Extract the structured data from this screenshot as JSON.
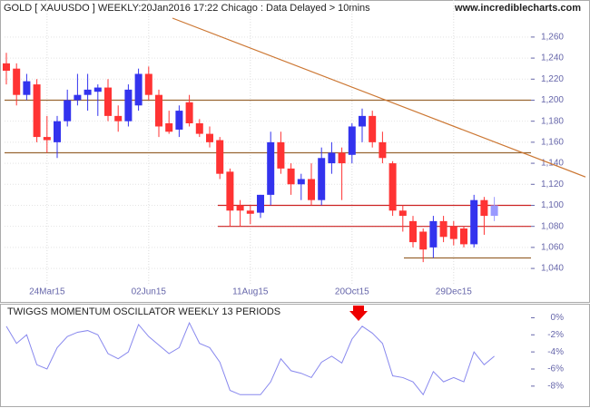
{
  "chart_data": [
    {
      "type": "candlestick",
      "title": "GOLD [ XAUUSDO ] WEEKLY:20Jan2016 17:22 Chicago : Data Delayed > 10mins",
      "source": "www.incrediblecharts.com",
      "categories": [
        null,
        null,
        null,
        null,
        "24Mar15",
        null,
        null,
        null,
        null,
        null,
        null,
        null,
        null,
        null,
        "02Jun15",
        null,
        null,
        null,
        null,
        null,
        null,
        null,
        null,
        null,
        "11Aug15",
        null,
        null,
        null,
        null,
        null,
        null,
        null,
        null,
        null,
        "20Oct15",
        null,
        null,
        null,
        null,
        null,
        null,
        null,
        null,
        null,
        "29Dec15",
        null,
        null,
        null,
        null
      ],
      "open": [
        1235,
        1230,
        1205,
        1215,
        1165,
        1160,
        1180,
        1200,
        1205,
        1208,
        1212,
        1185,
        1180,
        1195,
        1225,
        1205,
        1178,
        1172,
        1198,
        1178,
        1168,
        1162,
        1132,
        1100,
        1095,
        1093,
        1110,
        1160,
        1135,
        1120,
        1125,
        1105,
        1140,
        1150,
        1148,
        1175,
        1185,
        1160,
        1140,
        1095,
        1085,
        1075,
        1060,
        1085,
        1080,
        1078,
        1063,
        1105,
        1090
      ],
      "high": [
        1245,
        1235,
        1225,
        1220,
        1185,
        1185,
        1210,
        1225,
        1225,
        1215,
        1220,
        1195,
        1215,
        1230,
        1232,
        1210,
        1190,
        1195,
        1205,
        1182,
        1175,
        1165,
        1135,
        1105,
        1100,
        1110,
        1170,
        1170,
        1140,
        1130,
        1140,
        1155,
        1160,
        1155,
        1178,
        1192,
        1190,
        1170,
        1142,
        1100,
        1090,
        1078,
        1090,
        1090,
        1085,
        1080,
        1110,
        1108,
        1108
      ],
      "low": [
        1215,
        1195,
        1200,
        1160,
        1150,
        1145,
        1175,
        1195,
        1190,
        1185,
        1180,
        1170,
        1175,
        1190,
        1200,
        1165,
        1168,
        1165,
        1175,
        1165,
        1155,
        1125,
        1080,
        1080,
        1082,
        1088,
        1100,
        1130,
        1110,
        1105,
        1100,
        1100,
        1130,
        1105,
        1140,
        1160,
        1155,
        1140,
        1090,
        1075,
        1060,
        1046,
        1050,
        1065,
        1062,
        1060,
        1060,
        1072,
        1085
      ],
      "close": [
        1228,
        1205,
        1218,
        1165,
        1162,
        1180,
        1200,
        1205,
        1210,
        1212,
        1185,
        1180,
        1210,
        1225,
        1205,
        1175,
        1170,
        1190,
        1178,
        1168,
        1160,
        1130,
        1095,
        1095,
        1092,
        1110,
        1160,
        1135,
        1120,
        1125,
        1105,
        1145,
        1150,
        1140,
        1175,
        1185,
        1160,
        1145,
        1095,
        1090,
        1065,
        1058,
        1085,
        1070,
        1068,
        1063,
        1105,
        1090,
        1100
      ],
      "up_color": "#3333ee",
      "down_color": "#ff3333",
      "partial_color": "#9999ff",
      "ylim": [
        1028,
        1278
      ],
      "yticks": [
        {
          "value": 1040,
          "label": "1,040"
        },
        {
          "value": 1060,
          "label": "1,060"
        },
        {
          "value": 1080,
          "label": "1,080"
        },
        {
          "value": 1100,
          "label": "1,100"
        },
        {
          "value": 1120,
          "label": "1,120"
        },
        {
          "value": 1140,
          "label": "1,140"
        },
        {
          "value": 1160,
          "label": "1,160"
        },
        {
          "value": 1180,
          "label": "1,180"
        },
        {
          "value": 1200,
          "label": "1,200"
        },
        {
          "value": 1220,
          "label": "1,220"
        },
        {
          "value": 1240,
          "label": "1,240"
        },
        {
          "value": 1260,
          "label": "1,260"
        }
      ],
      "hlines": [
        {
          "value": 1200,
          "color": "#996633"
        },
        {
          "value": 1150,
          "color": "#996633"
        },
        {
          "value": 1100,
          "color": "#cc2222"
        },
        {
          "value": 1080,
          "color": "#cc2222"
        },
        {
          "value": 1050,
          "color": "#996633"
        }
      ],
      "trendline": [
        1278,
        1127
      ],
      "trend_color": "#cc7733",
      "grid": true
    },
    {
      "type": "line",
      "title": "TWIGGS MOMENTUM OSCILLATOR WEEKLY 13 PERIODS",
      "values": [
        -1,
        -3,
        -2,
        -5.5,
        -6,
        -3.5,
        -2.2,
        -1.7,
        -1.5,
        -2,
        -4.2,
        -4.8,
        -4,
        -0.8,
        -2.2,
        -3.2,
        -4.2,
        -3.5,
        -0.6,
        -3,
        -3.5,
        -5.2,
        -8.5,
        -9,
        -9,
        -9,
        -7.5,
        -4.8,
        -6.2,
        -6.5,
        -7,
        -5.2,
        -4.5,
        -5.3,
        -2.5,
        -1,
        -1.8,
        -3,
        -6.8,
        -7,
        -7.5,
        -9,
        -6.3,
        -7.5,
        -7,
        -7.5,
        -4,
        -5.5,
        -4.5
      ],
      "color": "#8888ee",
      "ylim": [
        -9.5,
        1
      ],
      "yticks": [
        {
          "value": 0,
          "label": "0%"
        },
        {
          "value": -2,
          "label": "-2%"
        },
        {
          "value": -4,
          "label": "-4%"
        },
        {
          "value": -6,
          "label": "-6%"
        },
        {
          "value": -8,
          "label": "-8%"
        }
      ]
    }
  ]
}
